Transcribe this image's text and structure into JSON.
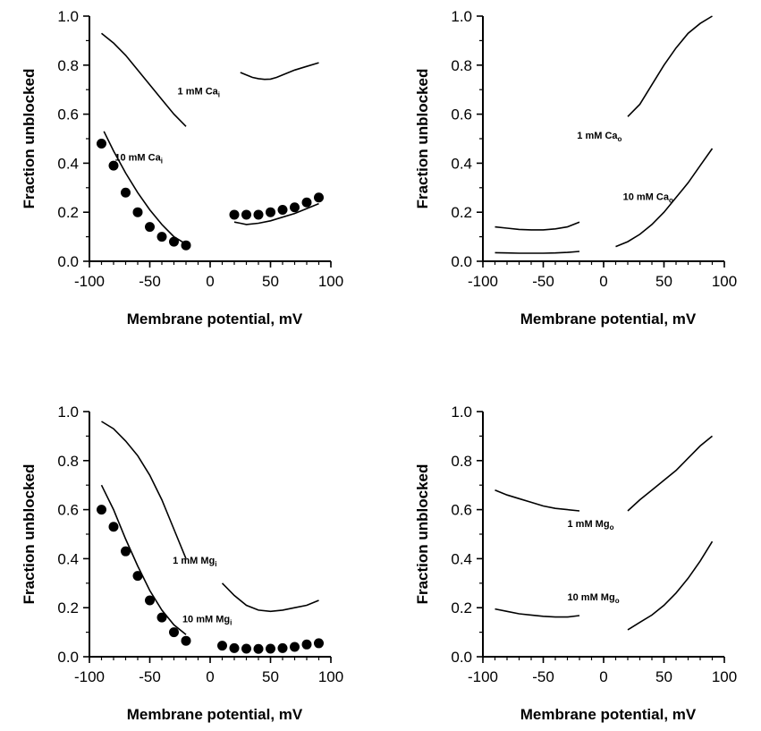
{
  "chart_data": [
    {
      "type": "line",
      "panel": "top-left",
      "xlabel": "Membrane potential, mV",
      "ylabel": "Fraction unblocked",
      "xlim": [
        -100,
        100
      ],
      "ylim": [
        0,
        1
      ],
      "xticks": [
        "-100",
        "-50",
        "0",
        "50",
        "100"
      ],
      "yticks": [
        "0.0",
        "0.2",
        "0.4",
        "0.6",
        "0.8",
        "1.0"
      ],
      "annotations": [
        {
          "text": "1 mM Ca",
          "sub": "i",
          "x": -27,
          "y": 0.68
        },
        {
          "text": "10 mM Ca",
          "sub": "i",
          "x": -79,
          "y": 0.41
        }
      ],
      "series": [
        {
          "kind": "line",
          "x": [
            -90,
            -80,
            -70,
            -60,
            -50,
            -40,
            -30,
            -20
          ],
          "y": [
            0.93,
            0.89,
            0.84,
            0.78,
            0.72,
            0.66,
            0.6,
            0.55
          ]
        },
        {
          "kind": "line",
          "x": [
            25,
            30,
            35,
            40,
            45,
            50,
            55,
            60,
            70,
            80,
            90
          ],
          "y": [
            0.77,
            0.76,
            0.75,
            0.745,
            0.742,
            0.743,
            0.75,
            0.76,
            0.78,
            0.795,
            0.81
          ]
        },
        {
          "kind": "line",
          "x": [
            -88,
            -80,
            -70,
            -60,
            -50,
            -40,
            -30,
            -20
          ],
          "y": [
            0.53,
            0.45,
            0.36,
            0.28,
            0.21,
            0.15,
            0.1,
            0.07
          ]
        },
        {
          "kind": "line",
          "x": [
            20,
            25,
            30,
            40,
            50,
            60,
            70,
            80,
            90
          ],
          "y": [
            0.16,
            0.155,
            0.15,
            0.155,
            0.165,
            0.18,
            0.195,
            0.215,
            0.235
          ]
        },
        {
          "kind": "scatter",
          "x": [
            -90,
            -80,
            -70,
            -60,
            -50,
            -40,
            -30,
            -20
          ],
          "y": [
            0.48,
            0.39,
            0.28,
            0.2,
            0.14,
            0.1,
            0.08,
            0.065
          ]
        },
        {
          "kind": "scatter",
          "x": [
            20,
            30,
            40,
            50,
            60,
            70,
            80,
            90
          ],
          "y": [
            0.19,
            0.19,
            0.19,
            0.2,
            0.21,
            0.22,
            0.24,
            0.26
          ]
        }
      ]
    },
    {
      "type": "line",
      "panel": "top-right",
      "xlabel": "Membrane potential, mV",
      "ylabel": "Fraction unblocked",
      "xlim": [
        -100,
        100
      ],
      "ylim": [
        0,
        1
      ],
      "xticks": [
        "-100",
        "-50",
        "0",
        "50",
        "100"
      ],
      "yticks": [
        "0.0",
        "0.2",
        "0.4",
        "0.6",
        "0.8",
        "1.0"
      ],
      "annotations": [
        {
          "text": "1 mM Ca",
          "sub": "o",
          "x": -22,
          "y": 0.5
        },
        {
          "text": "10 mM Ca",
          "sub": "o",
          "x": 16,
          "y": 0.25
        }
      ],
      "series": [
        {
          "kind": "line",
          "x": [
            -90,
            -80,
            -70,
            -60,
            -50,
            -40,
            -30,
            -20
          ],
          "y": [
            0.14,
            0.135,
            0.13,
            0.128,
            0.128,
            0.132,
            0.14,
            0.16
          ]
        },
        {
          "kind": "line",
          "x": [
            20,
            30,
            40,
            50,
            60,
            70,
            80,
            90
          ],
          "y": [
            0.59,
            0.64,
            0.72,
            0.8,
            0.87,
            0.93,
            0.97,
            1.0
          ]
        },
        {
          "kind": "line",
          "x": [
            -90,
            -80,
            -70,
            -60,
            -50,
            -40,
            -30,
            -20
          ],
          "y": [
            0.035,
            0.034,
            0.033,
            0.033,
            0.033,
            0.034,
            0.036,
            0.04
          ]
        },
        {
          "kind": "line",
          "x": [
            10,
            20,
            30,
            40,
            50,
            60,
            70,
            80,
            90
          ],
          "y": [
            0.06,
            0.08,
            0.11,
            0.15,
            0.2,
            0.26,
            0.32,
            0.39,
            0.46
          ]
        }
      ]
    },
    {
      "type": "line",
      "panel": "bottom-left",
      "xlabel": "Membrane potential, mV",
      "ylabel": "Fraction unblocked",
      "xlim": [
        -100,
        100
      ],
      "ylim": [
        0,
        1
      ],
      "xticks": [
        "-100",
        "-50",
        "0",
        "50",
        "100"
      ],
      "yticks": [
        "0.0",
        "0.2",
        "0.4",
        "0.6",
        "0.8",
        "1.0"
      ],
      "annotations": [
        {
          "text": "1 mM Mg",
          "sub": "i",
          "x": -31,
          "y": 0.38
        },
        {
          "text": "10 mM Mg",
          "sub": "i",
          "x": -23,
          "y": 0.14
        }
      ],
      "series": [
        {
          "kind": "line",
          "x": [
            -90,
            -80,
            -70,
            -60,
            -50,
            -40,
            -30,
            -20
          ],
          "y": [
            0.96,
            0.93,
            0.88,
            0.82,
            0.74,
            0.64,
            0.52,
            0.4
          ]
        },
        {
          "kind": "line",
          "x": [
            10,
            20,
            30,
            40,
            50,
            60,
            70,
            80,
            90
          ],
          "y": [
            0.3,
            0.25,
            0.21,
            0.19,
            0.185,
            0.19,
            0.2,
            0.21,
            0.23
          ]
        },
        {
          "kind": "line",
          "x": [
            -90,
            -80,
            -70,
            -60,
            -50,
            -40,
            -30,
            -20
          ],
          "y": [
            0.7,
            0.6,
            0.48,
            0.37,
            0.27,
            0.19,
            0.13,
            0.09
          ]
        },
        {
          "kind": "scatter",
          "x": [
            -90,
            -80,
            -70,
            -60,
            -50,
            -40,
            -30,
            -20
          ],
          "y": [
            0.6,
            0.53,
            0.43,
            0.33,
            0.23,
            0.16,
            0.1,
            0.065
          ]
        },
        {
          "kind": "scatter",
          "x": [
            10,
            20,
            30,
            40,
            50,
            60,
            70,
            80,
            90
          ],
          "y": [
            0.045,
            0.035,
            0.033,
            0.032,
            0.033,
            0.035,
            0.04,
            0.05,
            0.055
          ]
        }
      ]
    },
    {
      "type": "line",
      "panel": "bottom-right",
      "xlabel": "Membrane potential, mV",
      "ylabel": "Fraction unblocked",
      "xlim": [
        -100,
        100
      ],
      "ylim": [
        0,
        1
      ],
      "xticks": [
        "-100",
        "-50",
        "0",
        "50",
        "100"
      ],
      "yticks": [
        "0.0",
        "0.2",
        "0.4",
        "0.6",
        "0.8",
        "1.0"
      ],
      "annotations": [
        {
          "text": "1 mM Mg",
          "sub": "o",
          "x": -30,
          "y": 0.53
        },
        {
          "text": "10 mM Mg",
          "sub": "o",
          "x": -30,
          "y": 0.23
        }
      ],
      "series": [
        {
          "kind": "line",
          "x": [
            -90,
            -80,
            -70,
            -60,
            -50,
            -40,
            -30,
            -20
          ],
          "y": [
            0.68,
            0.66,
            0.645,
            0.63,
            0.615,
            0.605,
            0.6,
            0.595
          ]
        },
        {
          "kind": "line",
          "x": [
            20,
            30,
            40,
            50,
            60,
            70,
            80,
            90
          ],
          "y": [
            0.595,
            0.64,
            0.68,
            0.72,
            0.76,
            0.81,
            0.86,
            0.9
          ]
        },
        {
          "kind": "line",
          "x": [
            -90,
            -80,
            -70,
            -60,
            -50,
            -40,
            -30,
            -20
          ],
          "y": [
            0.195,
            0.185,
            0.175,
            0.17,
            0.165,
            0.162,
            0.162,
            0.168
          ]
        },
        {
          "kind": "line",
          "x": [
            20,
            30,
            40,
            50,
            60,
            70,
            80,
            90
          ],
          "y": [
            0.11,
            0.14,
            0.17,
            0.21,
            0.26,
            0.32,
            0.39,
            0.47
          ]
        }
      ]
    }
  ]
}
